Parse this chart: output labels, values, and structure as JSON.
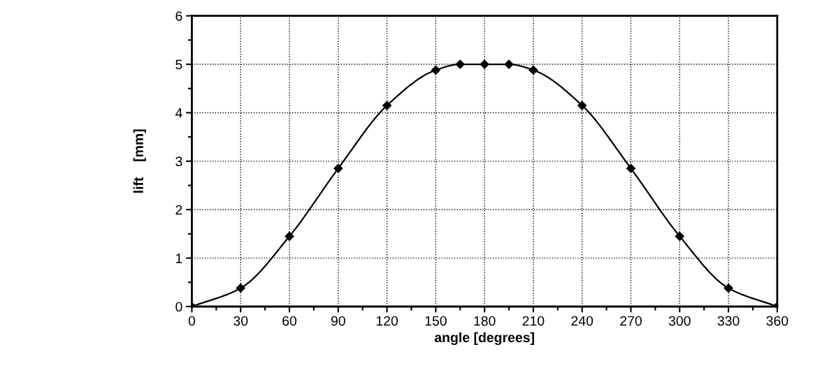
{
  "chart_data": {
    "type": "line",
    "xlabel": "angle [degrees]",
    "ylabel": "lift    [mm]",
    "x": [
      0,
      30,
      60,
      90,
      120,
      150,
      165,
      180,
      195,
      210,
      240,
      270,
      300,
      330,
      360
    ],
    "series": [
      {
        "color": "#000000",
        "values": [
          0,
          0.38,
          1.45,
          2.85,
          4.15,
          4.88,
          5.0,
          5.0,
          5.0,
          4.88,
          4.15,
          2.85,
          1.45,
          0.38,
          0
        ]
      }
    ],
    "xlim": [
      0,
      360
    ],
    "xticks": [
      0,
      30,
      60,
      90,
      120,
      150,
      180,
      210,
      240,
      270,
      300,
      330,
      360
    ],
    "ylim": [
      0,
      6
    ],
    "yticks": [
      0,
      1,
      2,
      3,
      4,
      5,
      6
    ],
    "grid": true,
    "marker": "diamond",
    "line_style": "solid"
  }
}
